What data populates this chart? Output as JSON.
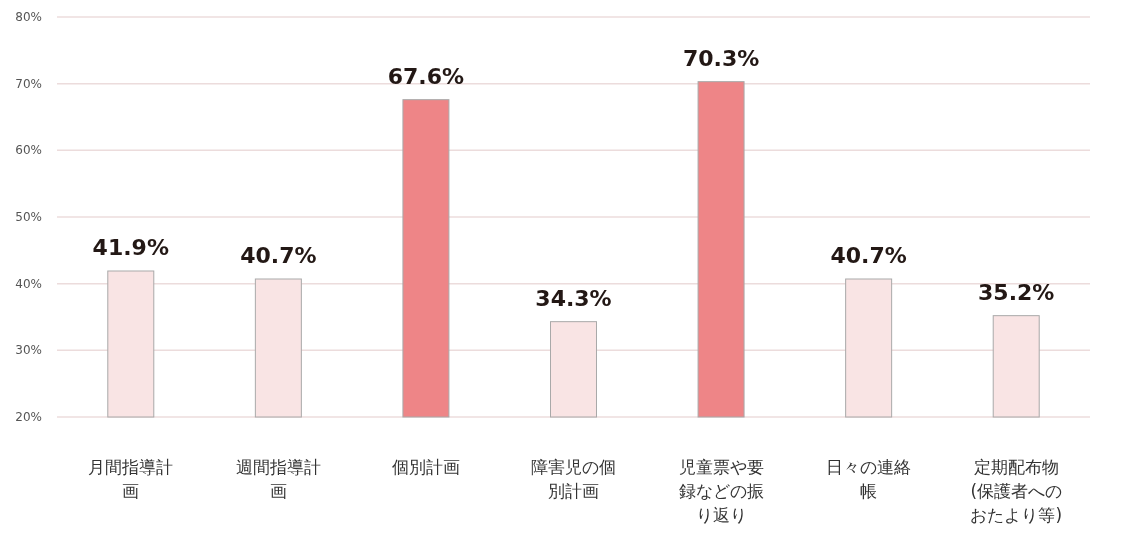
{
  "chart_data": {
    "type": "bar",
    "categories": [
      "月間指導計画",
      "週間指導計画",
      "個別計画",
      "障害児の個別計画",
      "児童票や要録などの振り返り",
      "日々の連絡帳",
      "定期配布物(保護者へのおたより等)"
    ],
    "values": [
      41.9,
      40.7,
      67.6,
      34.3,
      70.3,
      40.7,
      35.2
    ],
    "colors": [
      "#f9e4e4",
      "#f9e4e4",
      "#ee8587",
      "#f9e4e4",
      "#ee8587",
      "#f9e4e4",
      "#f9e4e4"
    ],
    "value_labels": [
      "41.9%",
      "40.7%",
      "67.6%",
      "34.3%",
      "70.3%",
      "40.7%",
      "35.2%"
    ],
    "ylim": [
      20,
      80
    ],
    "yticks": [
      {
        "value": 20,
        "label": "20%"
      },
      {
        "value": 30,
        "label": "30%"
      },
      {
        "value": 40,
        "label": "40%"
      },
      {
        "value": 50,
        "label": "50%"
      },
      {
        "value": 60,
        "label": "60%"
      },
      {
        "value": 70,
        "label": "70%"
      },
      {
        "value": 80,
        "label": "80%"
      }
    ],
    "grid": "y"
  }
}
